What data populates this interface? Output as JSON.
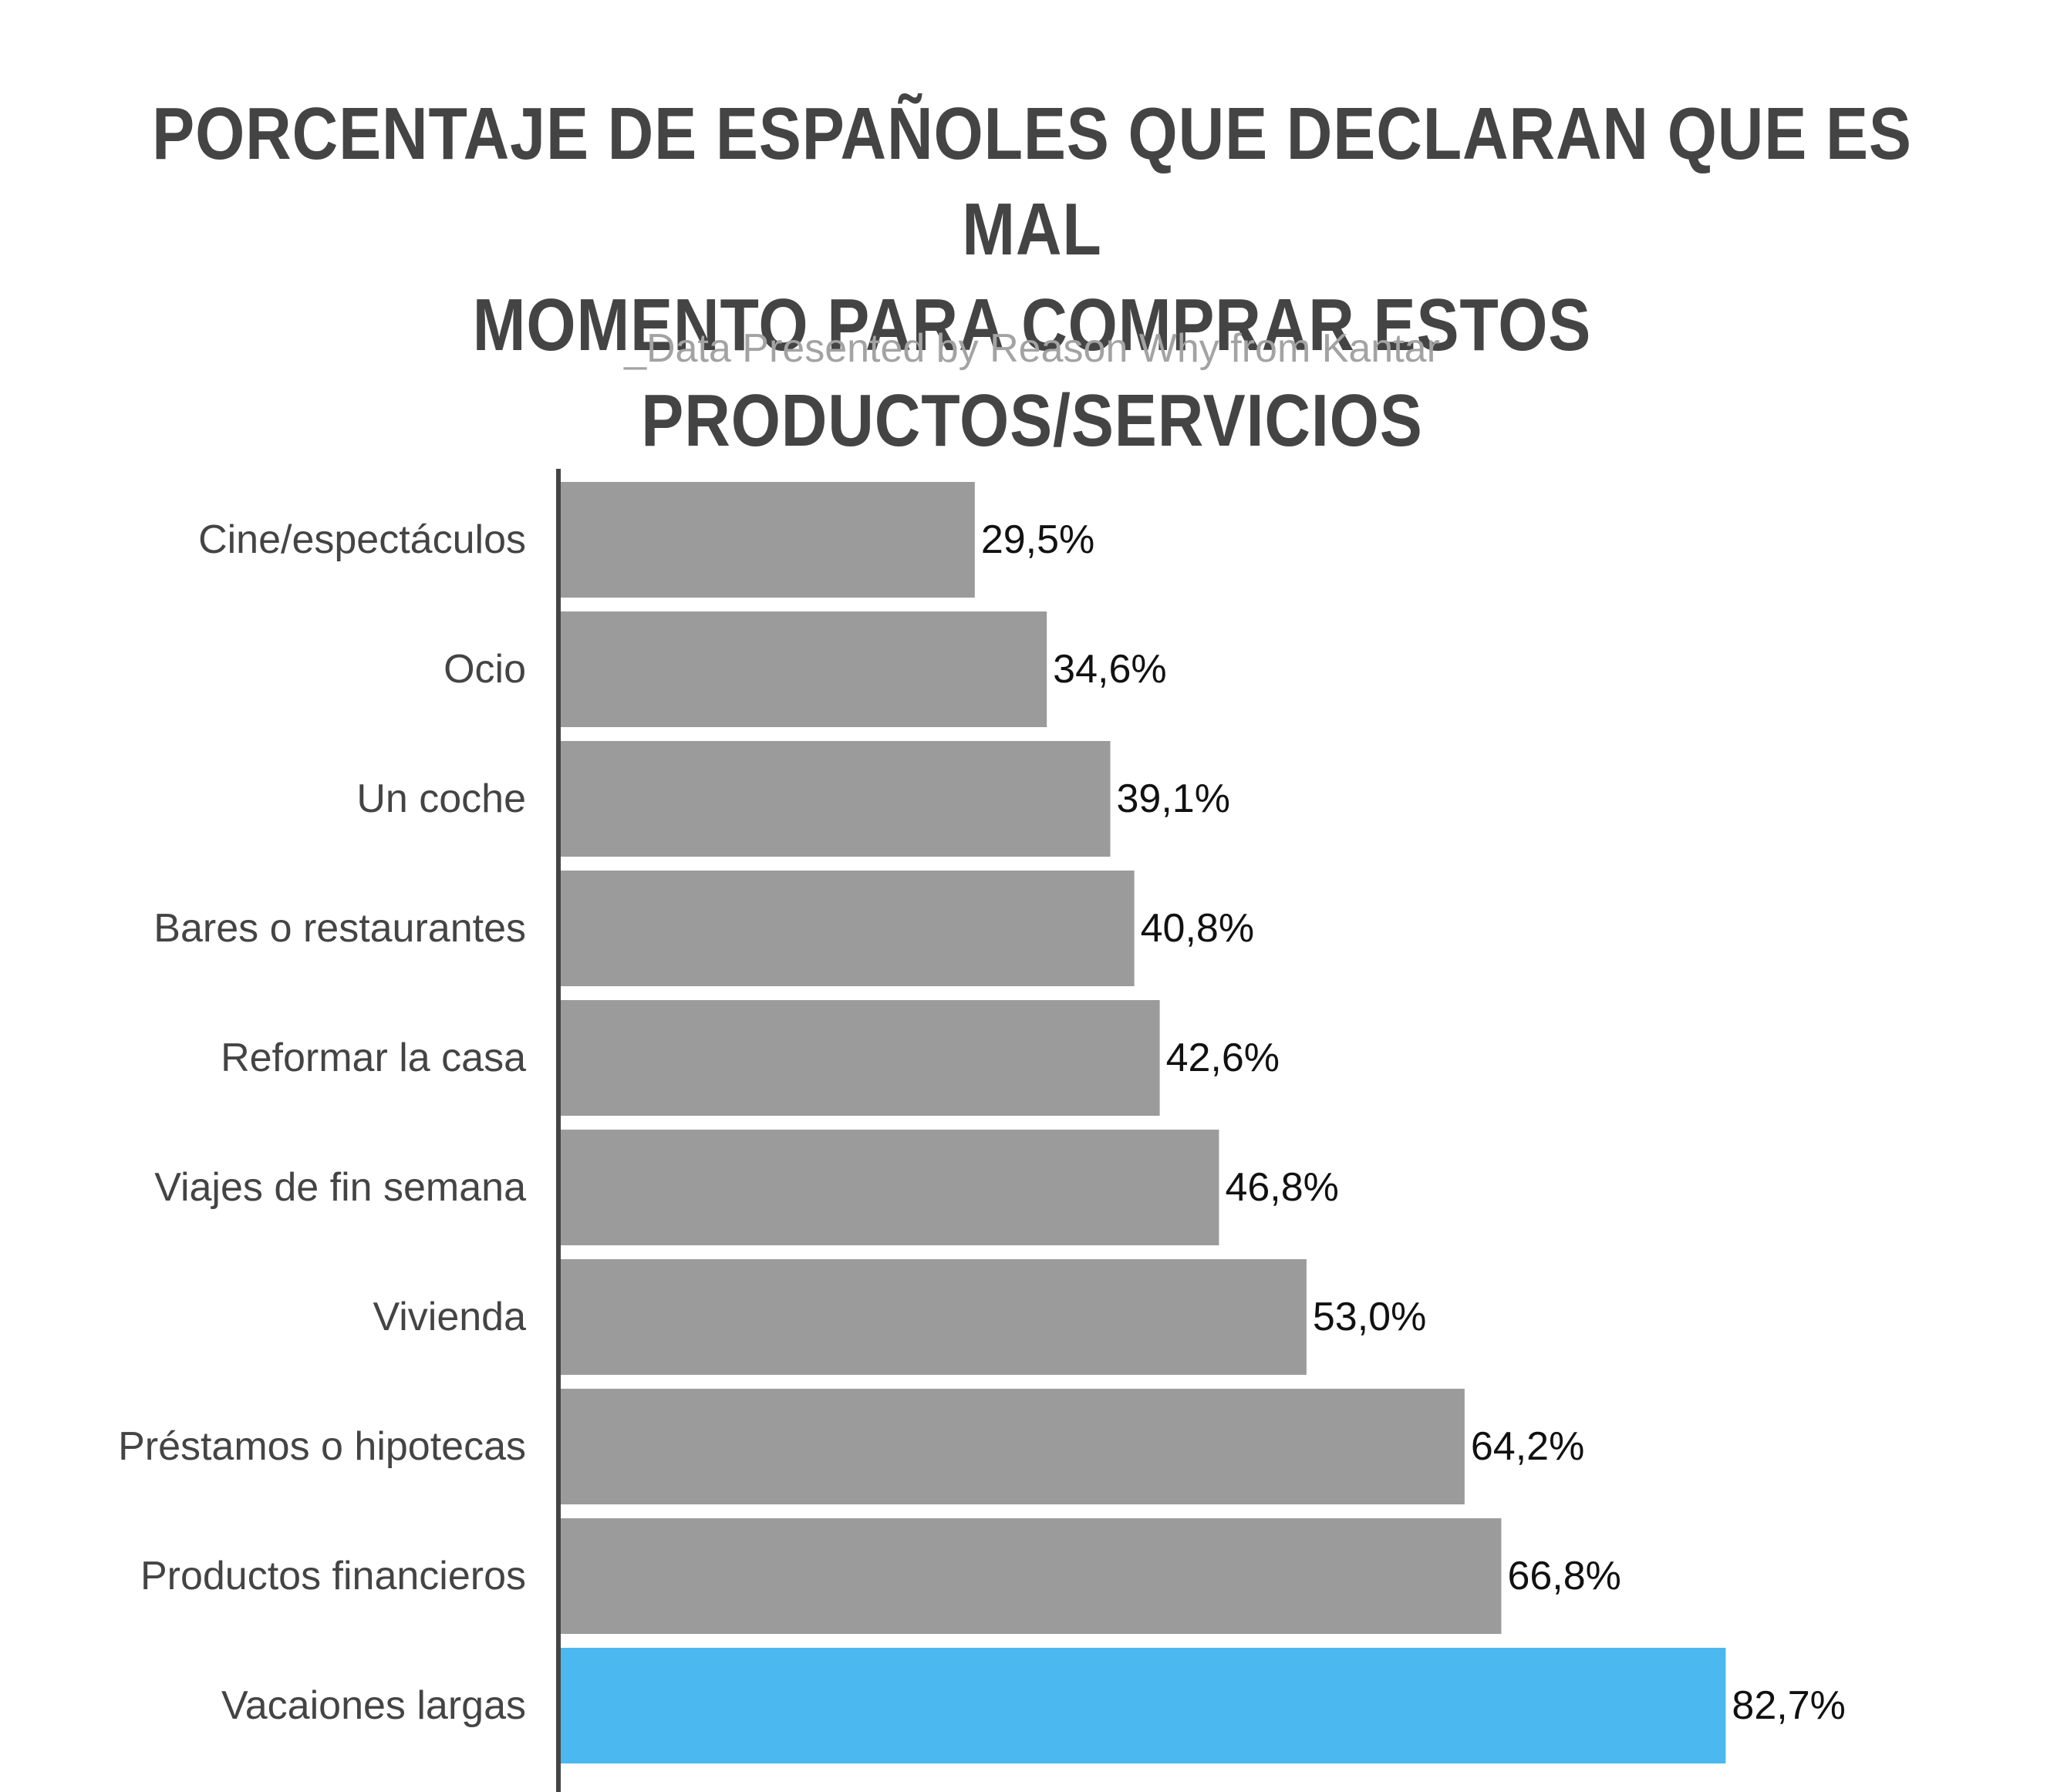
{
  "title_lines": [
    "PORCENTAJE DE ESPAÑOLES QUE DECLARAN QUE ES MAL",
    "MOMENTO PARA COMPRAR ESTOS PRODUCTOS/SERVICIOS"
  ],
  "subtitle": "_Data Presented by Reason Why from Kantar",
  "colors": {
    "bar_default": "#9b9b9b",
    "bar_highlight": "#4bb8f0",
    "axis": "#444444"
  },
  "chart_data": {
    "type": "bar",
    "orientation": "horizontal",
    "title": "PORCENTAJE DE ESPAÑOLES QUE DECLARAN QUE ES MAL MOMENTO PARA COMPRAR ESTOS PRODUCTOS/SERVICIOS",
    "subtitle": "_Data Presented by Reason Why from Kantar",
    "categories": [
      "Cine/espectáculos",
      "Ocio",
      "Un coche",
      "Bares o restaurantes",
      "Reformar la casa",
      "Viajes de fin semana",
      "Vivienda",
      "Préstamos o hipotecas",
      "Productos financieros",
      "Vacaiones largas"
    ],
    "values": [
      29.5,
      34.6,
      39.1,
      40.8,
      42.6,
      46.8,
      53.0,
      64.2,
      66.8,
      82.7
    ],
    "value_labels": [
      "29,5%",
      "34,6%",
      "39,1%",
      "40,8%",
      "42,6%",
      "46,8%",
      "53,0%",
      "64,2%",
      "66,8%",
      "82,7%"
    ],
    "highlight_index": 9,
    "xlim": [
      0,
      100
    ],
    "xlabel": "",
    "ylabel": "",
    "grid": false,
    "legend": "none"
  }
}
